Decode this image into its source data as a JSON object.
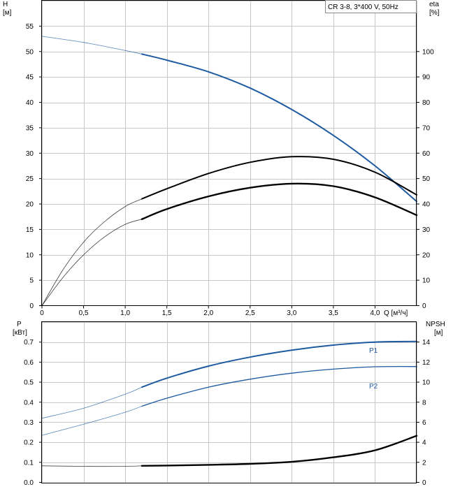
{
  "legend": "CR 3-8, 3*400 V, 50Hz",
  "colors": {
    "blue": "#1e5aa0",
    "black": "#000000",
    "grid": "#c8c8c8"
  },
  "chart_data": [
    {
      "type": "line",
      "title": "",
      "grid": true,
      "xlabel": "Q [м³/ч]",
      "x_ticks": [
        "0",
        "0,5",
        "1,0",
        "1,5",
        "2,0",
        "2,5",
        "3,0",
        "3,5",
        "4,0"
      ],
      "xlim": [
        0,
        4.5
      ],
      "left_axis": {
        "label": "H",
        "unit": "[м]",
        "ylim": [
          0,
          60
        ],
        "ticks": [
          "0",
          "5",
          "10",
          "15",
          "20",
          "25",
          "30",
          "35",
          "40",
          "45",
          "50",
          "55"
        ],
        "tick_values": [
          0,
          5,
          10,
          15,
          20,
          25,
          30,
          35,
          40,
          45,
          50,
          55
        ]
      },
      "right_axis": {
        "label": "eta",
        "unit": "[%]",
        "ylim": [
          0,
          120
        ],
        "ticks": [
          "0",
          "10",
          "20",
          "30",
          "40",
          "50",
          "60",
          "70",
          "80",
          "90",
          "100"
        ],
        "tick_values": [
          0,
          10,
          20,
          30,
          40,
          50,
          60,
          70,
          80,
          90,
          100
        ]
      },
      "series": [
        {
          "axis": "left",
          "color": "#1e5aa0",
          "operating_from": 1.2,
          "x": [
            0,
            0.5,
            1.0,
            1.2,
            1.5,
            2.0,
            2.5,
            3.0,
            3.5,
            4.0,
            4.5
          ],
          "y": [
            53.0,
            51.8,
            50.2,
            49.5,
            48.3,
            46.0,
            42.8,
            38.6,
            33.5,
            27.5,
            20.5
          ]
        },
        {
          "axis": "right",
          "color": "#000000",
          "operating_from": 1.2,
          "x": [
            0,
            0.25,
            0.5,
            0.75,
            1.0,
            1.2,
            1.5,
            2.0,
            2.5,
            3.0,
            3.5,
            4.0,
            4.5
          ],
          "y": [
            0,
            14,
            25,
            33,
            39,
            42,
            46,
            52,
            56.4,
            58.6,
            57.6,
            52.5,
            43.6
          ]
        },
        {
          "axis": "right",
          "color": "#000000",
          "bold": true,
          "operating_from": 1.2,
          "x": [
            0,
            0.25,
            0.5,
            0.75,
            1.0,
            1.2,
            1.5,
            2.0,
            2.5,
            3.0,
            3.5,
            4.0,
            4.5
          ],
          "y": [
            0,
            11,
            20,
            27,
            32,
            34,
            38,
            43,
            46.4,
            48,
            47,
            42.6,
            35.6
          ]
        }
      ]
    },
    {
      "type": "line",
      "title": "",
      "grid": true,
      "xlim": [
        0,
        4.5
      ],
      "left_axis": {
        "label": "P",
        "unit": "[кВт]",
        "ylim": [
          0,
          0.8
        ],
        "ticks": [
          "0.0",
          "0.1",
          "0.2",
          "0.3",
          "0.4",
          "0.5",
          "0.6",
          "0.7"
        ],
        "tick_values": [
          0,
          0.1,
          0.2,
          0.3,
          0.4,
          0.5,
          0.6,
          0.7
        ]
      },
      "right_axis": {
        "label": "NPSH",
        "unit": "[м]",
        "ylim": [
          0,
          16
        ],
        "ticks": [
          "0",
          "2",
          "4",
          "6",
          "8",
          "10",
          "12",
          "14"
        ],
        "tick_values": [
          0,
          2,
          4,
          6,
          8,
          10,
          12,
          14
        ]
      },
      "series": [
        {
          "name": "P1",
          "axis": "left",
          "color": "#1e5aa0",
          "operating_from": 1.2,
          "x": [
            0,
            0.5,
            1.0,
            1.2,
            1.5,
            2.0,
            2.5,
            3.0,
            3.5,
            4.0,
            4.5
          ],
          "y": [
            0.32,
            0.37,
            0.44,
            0.475,
            0.52,
            0.58,
            0.625,
            0.66,
            0.685,
            0.7,
            0.703
          ]
        },
        {
          "name": "P2",
          "axis": "left",
          "color": "#1e5aa0",
          "operating_from": 1.2,
          "x": [
            0,
            0.5,
            1.0,
            1.2,
            1.5,
            2.0,
            2.5,
            3.0,
            3.5,
            4.0,
            4.5
          ],
          "y": [
            0.235,
            0.29,
            0.35,
            0.38,
            0.42,
            0.475,
            0.515,
            0.545,
            0.565,
            0.577,
            0.578
          ]
        },
        {
          "axis": "right",
          "color": "#000000",
          "bold": true,
          "operating_from": 1.2,
          "x": [
            0,
            0.5,
            1.0,
            1.2,
            1.5,
            2.0,
            2.5,
            3.0,
            3.5,
            4.0,
            4.5
          ],
          "y": [
            1.65,
            1.6,
            1.6,
            1.65,
            1.68,
            1.75,
            1.85,
            2.05,
            2.5,
            3.2,
            4.65
          ]
        }
      ]
    }
  ]
}
